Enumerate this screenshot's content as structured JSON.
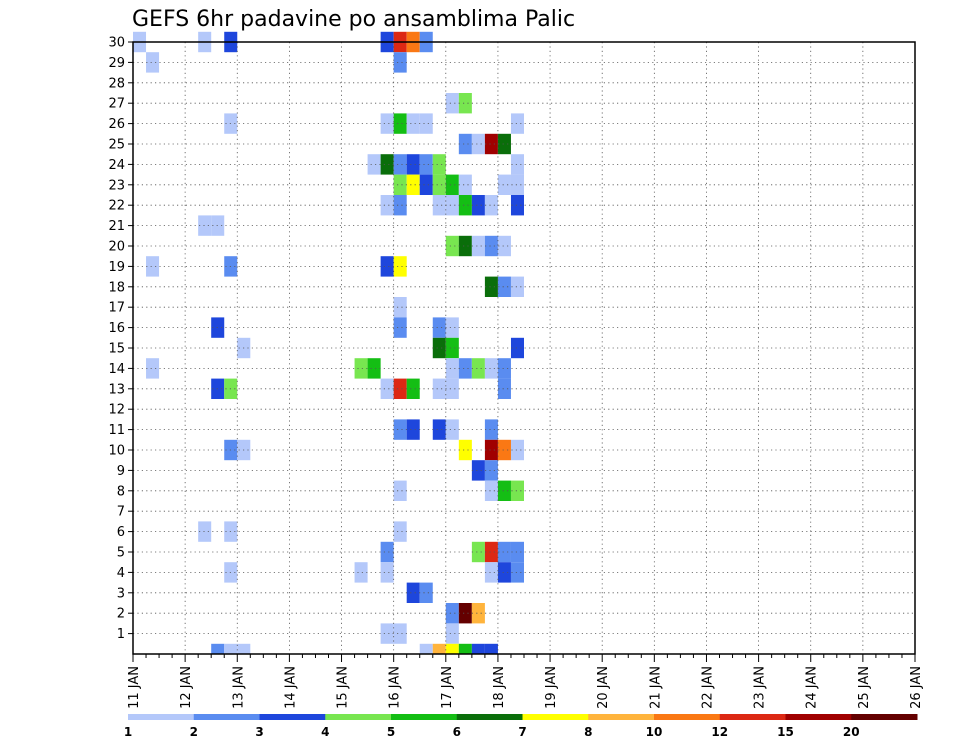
{
  "chart_data": {
    "type": "heatmap",
    "title": "GEFS 6hr padavine po ansamblima Palic",
    "xlabel": "",
    "ylabel": "",
    "x_tick_labels": [
      "11 JAN",
      "12 JAN",
      "13 JAN",
      "14 JAN",
      "15 JAN",
      "16 JAN",
      "17 JAN",
      "18 JAN",
      "19 JAN",
      "20 JAN",
      "21 JAN",
      "22 JAN",
      "23 JAN",
      "24 JAN",
      "25 JAN",
      "26 JAN"
    ],
    "y_tick_labels": [
      "1",
      "2",
      "3",
      "4",
      "5",
      "6",
      "7",
      "8",
      "9",
      "10",
      "11",
      "12",
      "13",
      "14",
      "15",
      "16",
      "17",
      "18",
      "19",
      "20",
      "21",
      "22",
      "23",
      "24",
      "25",
      "26",
      "27",
      "28",
      "29",
      "30"
    ],
    "xlim_days": [
      11,
      26
    ],
    "ylim_members": [
      0,
      30
    ],
    "grid": "dotted",
    "cell_unit": "6h step index from 11 JAN 00Z (4 steps per day), member row",
    "legend": {
      "position": "bottom",
      "labels": [
        "1",
        "2",
        "3",
        "4",
        "5",
        "6",
        "7",
        "8",
        "10",
        "12",
        "15",
        "20"
      ],
      "colors": [
        "#b4c8fa",
        "#5a8cf0",
        "#1e46dc",
        "#78e650",
        "#14be14",
        "#0a6e0a",
        "#ffff00",
        "#ffb43c",
        "#fa7814",
        "#dc2814",
        "#a00000",
        "#640000"
      ]
    },
    "cells": [
      {
        "member": 30,
        "step": 0,
        "level": 0
      },
      {
        "member": 30,
        "step": 5,
        "level": 0
      },
      {
        "member": 30,
        "step": 7,
        "level": 2
      },
      {
        "member": 30,
        "step": 19,
        "level": 2
      },
      {
        "member": 30,
        "step": 20,
        "level": 9
      },
      {
        "member": 30,
        "step": 21,
        "level": 8
      },
      {
        "member": 30,
        "step": 22,
        "level": 1
      },
      {
        "member": 29,
        "step": 1,
        "level": 0
      },
      {
        "member": 29,
        "step": 20,
        "level": 1
      },
      {
        "member": 27,
        "step": 24,
        "level": 0
      },
      {
        "member": 27,
        "step": 25,
        "level": 3
      },
      {
        "member": 26,
        "step": 7,
        "level": 0
      },
      {
        "member": 26,
        "step": 19,
        "level": 0
      },
      {
        "member": 26,
        "step": 20,
        "level": 4
      },
      {
        "member": 26,
        "step": 21,
        "level": 0
      },
      {
        "member": 26,
        "step": 22,
        "level": 0
      },
      {
        "member": 26,
        "step": 29,
        "level": 0
      },
      {
        "member": 25,
        "step": 25,
        "level": 1
      },
      {
        "member": 25,
        "step": 26,
        "level": 0
      },
      {
        "member": 25,
        "step": 27,
        "level": 10
      },
      {
        "member": 25,
        "step": 28,
        "level": 5
      },
      {
        "member": 24,
        "step": 18,
        "level": 0
      },
      {
        "member": 24,
        "step": 19,
        "level": 5
      },
      {
        "member": 24,
        "step": 20,
        "level": 1
      },
      {
        "member": 24,
        "step": 21,
        "level": 2
      },
      {
        "member": 24,
        "step": 22,
        "level": 1
      },
      {
        "member": 24,
        "step": 23,
        "level": 3
      },
      {
        "member": 24,
        "step": 29,
        "level": 0
      },
      {
        "member": 23,
        "step": 20,
        "level": 3
      },
      {
        "member": 23,
        "step": 21,
        "level": 6
      },
      {
        "member": 23,
        "step": 22,
        "level": 2
      },
      {
        "member": 23,
        "step": 23,
        "level": 3
      },
      {
        "member": 23,
        "step": 24,
        "level": 4
      },
      {
        "member": 23,
        "step": 25,
        "level": 0
      },
      {
        "member": 23,
        "step": 28,
        "level": 0
      },
      {
        "member": 23,
        "step": 29,
        "level": 0
      },
      {
        "member": 22,
        "step": 19,
        "level": 0
      },
      {
        "member": 22,
        "step": 20,
        "level": 1
      },
      {
        "member": 22,
        "step": 23,
        "level": 0
      },
      {
        "member": 22,
        "step": 24,
        "level": 0
      },
      {
        "member": 22,
        "step": 25,
        "level": 4
      },
      {
        "member": 22,
        "step": 26,
        "level": 2
      },
      {
        "member": 22,
        "step": 27,
        "level": 0
      },
      {
        "member": 22,
        "step": 29,
        "level": 2
      },
      {
        "member": 21,
        "step": 5,
        "level": 0
      },
      {
        "member": 21,
        "step": 6,
        "level": 0
      },
      {
        "member": 20,
        "step": 24,
        "level": 3
      },
      {
        "member": 20,
        "step": 25,
        "level": 5
      },
      {
        "member": 20,
        "step": 26,
        "level": 0
      },
      {
        "member": 20,
        "step": 27,
        "level": 1
      },
      {
        "member": 20,
        "step": 28,
        "level": 0
      },
      {
        "member": 19,
        "step": 1,
        "level": 0
      },
      {
        "member": 19,
        "step": 7,
        "level": 1
      },
      {
        "member": 19,
        "step": 19,
        "level": 2
      },
      {
        "member": 19,
        "step": 20,
        "level": 6
      },
      {
        "member": 18,
        "step": 27,
        "level": 5
      },
      {
        "member": 18,
        "step": 28,
        "level": 1
      },
      {
        "member": 18,
        "step": 29,
        "level": 0
      },
      {
        "member": 17,
        "step": 20,
        "level": 0
      },
      {
        "member": 16,
        "step": 6,
        "level": 2
      },
      {
        "member": 16,
        "step": 20,
        "level": 1
      },
      {
        "member": 16,
        "step": 23,
        "level": 1
      },
      {
        "member": 16,
        "step": 24,
        "level": 0
      },
      {
        "member": 15,
        "step": 8,
        "level": 0
      },
      {
        "member": 15,
        "step": 23,
        "level": 5
      },
      {
        "member": 15,
        "step": 24,
        "level": 4
      },
      {
        "member": 15,
        "step": 29,
        "level": 2
      },
      {
        "member": 14,
        "step": 1,
        "level": 0
      },
      {
        "member": 14,
        "step": 17,
        "level": 3
      },
      {
        "member": 14,
        "step": 18,
        "level": 4
      },
      {
        "member": 14,
        "step": 24,
        "level": 0
      },
      {
        "member": 14,
        "step": 25,
        "level": 1
      },
      {
        "member": 14,
        "step": 26,
        "level": 3
      },
      {
        "member": 14,
        "step": 27,
        "level": 0
      },
      {
        "member": 14,
        "step": 28,
        "level": 1
      },
      {
        "member": 13,
        "step": 6,
        "level": 2
      },
      {
        "member": 13,
        "step": 7,
        "level": 3
      },
      {
        "member": 13,
        "step": 19,
        "level": 0
      },
      {
        "member": 13,
        "step": 20,
        "level": 9
      },
      {
        "member": 13,
        "step": 21,
        "level": 4
      },
      {
        "member": 13,
        "step": 23,
        "level": 0
      },
      {
        "member": 13,
        "step": 24,
        "level": 0
      },
      {
        "member": 13,
        "step": 28,
        "level": 1
      },
      {
        "member": 11,
        "step": 20,
        "level": 1
      },
      {
        "member": 11,
        "step": 21,
        "level": 2
      },
      {
        "member": 11,
        "step": 23,
        "level": 2
      },
      {
        "member": 11,
        "step": 24,
        "level": 0
      },
      {
        "member": 11,
        "step": 27,
        "level": 1
      },
      {
        "member": 10,
        "step": 7,
        "level": 1
      },
      {
        "member": 10,
        "step": 8,
        "level": 0
      },
      {
        "member": 10,
        "step": 25,
        "level": 6
      },
      {
        "member": 10,
        "step": 27,
        "level": 10
      },
      {
        "member": 10,
        "step": 28,
        "level": 8
      },
      {
        "member": 10,
        "step": 29,
        "level": 0
      },
      {
        "member": 9,
        "step": 26,
        "level": 2
      },
      {
        "member": 9,
        "step": 27,
        "level": 1
      },
      {
        "member": 8,
        "step": 20,
        "level": 0
      },
      {
        "member": 8,
        "step": 27,
        "level": 0
      },
      {
        "member": 8,
        "step": 28,
        "level": 4
      },
      {
        "member": 8,
        "step": 29,
        "level": 3
      },
      {
        "member": 6,
        "step": 5,
        "level": 0
      },
      {
        "member": 6,
        "step": 7,
        "level": 0
      },
      {
        "member": 6,
        "step": 20,
        "level": 0
      },
      {
        "member": 5,
        "step": 19,
        "level": 1
      },
      {
        "member": 5,
        "step": 26,
        "level": 3
      },
      {
        "member": 5,
        "step": 27,
        "level": 9
      },
      {
        "member": 5,
        "step": 28,
        "level": 1
      },
      {
        "member": 5,
        "step": 29,
        "level": 1
      },
      {
        "member": 4,
        "step": 7,
        "level": 0
      },
      {
        "member": 4,
        "step": 17,
        "level": 0
      },
      {
        "member": 4,
        "step": 19,
        "level": 0
      },
      {
        "member": 4,
        "step": 27,
        "level": 0
      },
      {
        "member": 4,
        "step": 28,
        "level": 2
      },
      {
        "member": 4,
        "step": 29,
        "level": 1
      },
      {
        "member": 3,
        "step": 21,
        "level": 2
      },
      {
        "member": 3,
        "step": 22,
        "level": 1
      },
      {
        "member": 2,
        "step": 24,
        "level": 1
      },
      {
        "member": 2,
        "step": 25,
        "level": 11
      },
      {
        "member": 2,
        "step": 26,
        "level": 7
      },
      {
        "member": 1,
        "step": 19,
        "level": 0
      },
      {
        "member": 1,
        "step": 20,
        "level": 0
      },
      {
        "member": 1,
        "step": 24,
        "level": 0
      }
    ],
    "edge_cells": [
      {
        "step": 6,
        "level": 1
      },
      {
        "step": 7,
        "level": 0
      },
      {
        "step": 8,
        "level": 0
      },
      {
        "step": 22,
        "level": 0
      },
      {
        "step": 23,
        "level": 7
      },
      {
        "step": 24,
        "level": 6
      },
      {
        "step": 25,
        "level": 4
      },
      {
        "step": 26,
        "level": 2
      },
      {
        "step": 27,
        "level": 2
      }
    ]
  }
}
